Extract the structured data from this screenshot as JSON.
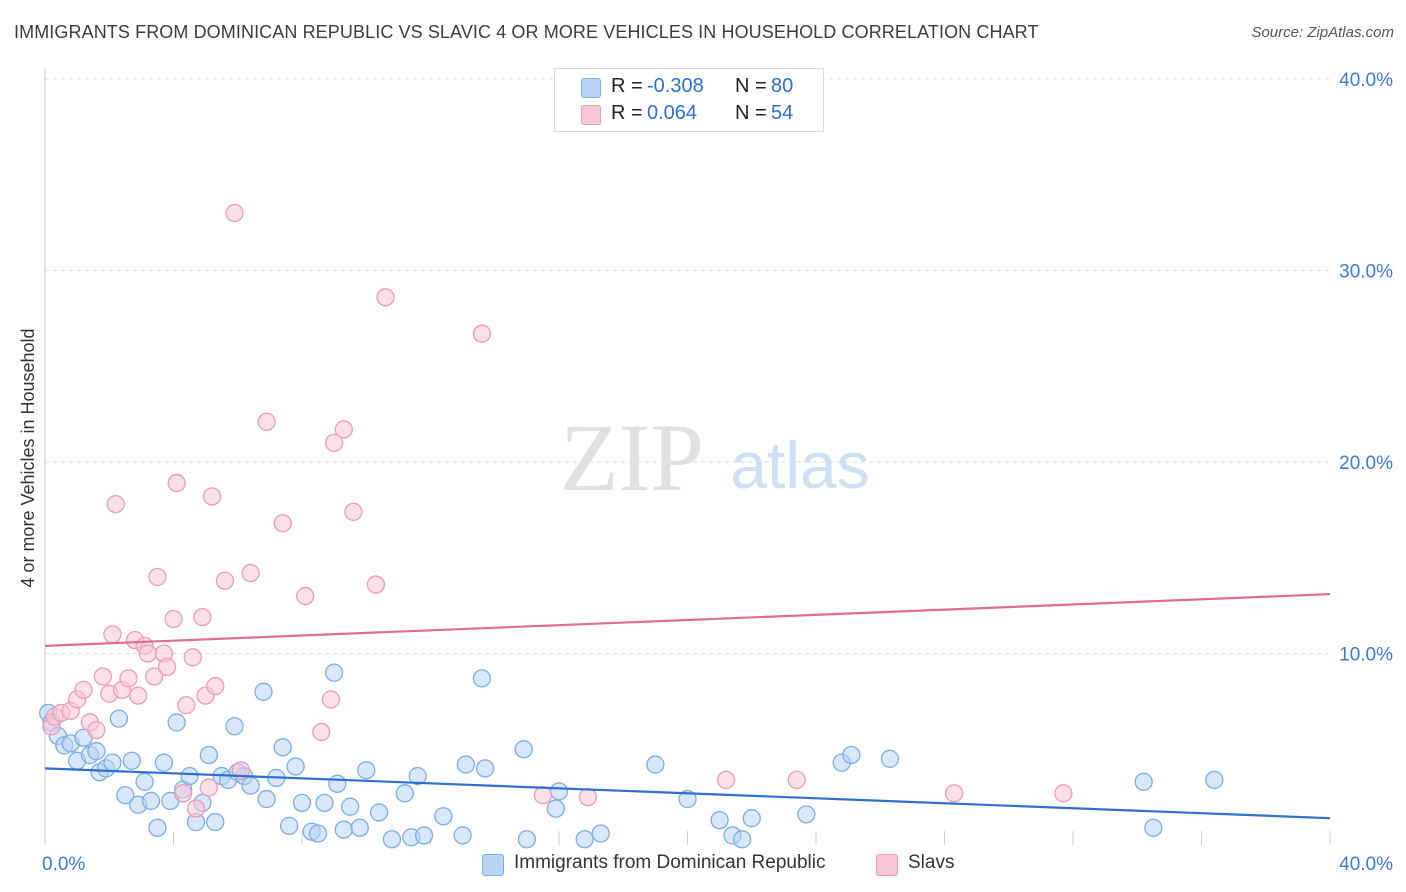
{
  "title": "IMMIGRANTS FROM DOMINICAN REPUBLIC VS SLAVIC 4 OR MORE VEHICLES IN HOUSEHOLD CORRELATION CHART",
  "source": "Source: ZipAtlas.com",
  "legend": {
    "series1": {
      "r_label": "R =",
      "r_value": "-0.308",
      "n_label": "N =",
      "n_value": "80"
    },
    "series2": {
      "r_label": "R =",
      "r_value": "0.064",
      "n_label": "N =",
      "n_value": "54"
    }
  },
  "watermark": {
    "zip": "ZIP",
    "atlas": "atlas"
  },
  "colors": {
    "blue_fill": "#b8d3f4",
    "blue_stroke": "#7aaee6",
    "blue_line": "#2f6fd0",
    "pink_fill": "#f8c6d6",
    "pink_stroke": "#ef9ab6",
    "pink_line": "#e06c94",
    "tick_text": "#3d7ad6",
    "grid": "#dedede"
  },
  "chart_data": {
    "type": "scatter",
    "title": "IMMIGRANTS FROM DOMINICAN REPUBLIC VS SLAVIC 4 OR MORE VEHICLES IN HOUSEHOLD CORRELATION CHART",
    "xlabel": "",
    "ylabel": "4 or more Vehicles in Household",
    "xlim": [
      0,
      40
    ],
    "ylim": [
      0,
      40
    ],
    "x_tick_labels": [
      "0.0%",
      "40.0%"
    ],
    "y_ticks": [
      10,
      20,
      30,
      40
    ],
    "y_tick_labels": [
      "10.0%",
      "20.0%",
      "30.0%",
      "40.0%"
    ],
    "grid": true,
    "legend_position": "bottom-center",
    "series": [
      {
        "name": "Immigrants from Dominican Republic",
        "color": "blue",
        "trend": {
          "x": [
            0,
            40
          ],
          "y": [
            4.0,
            1.4
          ]
        },
        "points": [
          [
            0.1,
            6.9
          ],
          [
            0.2,
            6.4
          ],
          [
            0.4,
            5.7
          ],
          [
            0.6,
            5.2
          ],
          [
            0.8,
            5.3
          ],
          [
            1.0,
            4.4
          ],
          [
            1.2,
            5.6
          ],
          [
            1.4,
            4.7
          ],
          [
            1.6,
            4.9
          ],
          [
            1.7,
            3.8
          ],
          [
            1.9,
            4.0
          ],
          [
            2.1,
            4.3
          ],
          [
            2.3,
            6.6
          ],
          [
            2.5,
            2.6
          ],
          [
            2.7,
            4.4
          ],
          [
            2.9,
            2.1
          ],
          [
            3.1,
            3.3
          ],
          [
            3.3,
            2.3
          ],
          [
            3.5,
            0.9
          ],
          [
            3.7,
            4.3
          ],
          [
            3.9,
            2.3
          ],
          [
            4.1,
            6.4
          ],
          [
            4.3,
            2.9
          ],
          [
            4.5,
            3.6
          ],
          [
            4.7,
            1.2
          ],
          [
            4.9,
            2.2
          ],
          [
            5.1,
            4.7
          ],
          [
            5.3,
            1.2
          ],
          [
            5.5,
            3.6
          ],
          [
            5.7,
            3.4
          ],
          [
            5.9,
            6.2
          ],
          [
            6.0,
            3.8
          ],
          [
            6.2,
            3.6
          ],
          [
            6.4,
            3.1
          ],
          [
            6.8,
            8.0
          ],
          [
            6.9,
            2.4
          ],
          [
            7.2,
            3.5
          ],
          [
            7.4,
            5.1
          ],
          [
            7.6,
            1.0
          ],
          [
            7.8,
            4.1
          ],
          [
            8.0,
            2.2
          ],
          [
            8.3,
            0.7
          ],
          [
            8.5,
            0.6
          ],
          [
            8.7,
            2.2
          ],
          [
            9.0,
            9.0
          ],
          [
            9.1,
            3.2
          ],
          [
            9.3,
            0.8
          ],
          [
            9.5,
            2.0
          ],
          [
            9.8,
            0.9
          ],
          [
            10.0,
            3.9
          ],
          [
            10.4,
            1.7
          ],
          [
            10.8,
            0.3
          ],
          [
            11.2,
            2.7
          ],
          [
            11.4,
            0.4
          ],
          [
            11.6,
            3.6
          ],
          [
            11.8,
            0.5
          ],
          [
            12.4,
            1.5
          ],
          [
            13.0,
            0.5
          ],
          [
            13.1,
            4.2
          ],
          [
            13.6,
            8.7
          ],
          [
            13.7,
            4.0
          ],
          [
            14.9,
            5.0
          ],
          [
            15.0,
            0.3
          ],
          [
            15.9,
            1.9
          ],
          [
            16.0,
            2.8
          ],
          [
            16.8,
            0.3
          ],
          [
            17.3,
            0.6
          ],
          [
            19.0,
            4.2
          ],
          [
            20.0,
            2.4
          ],
          [
            21.0,
            1.3
          ],
          [
            21.4,
            0.5
          ],
          [
            21.7,
            0.3
          ],
          [
            22.0,
            1.4
          ],
          [
            23.7,
            1.6
          ],
          [
            24.8,
            4.3
          ],
          [
            25.1,
            4.7
          ],
          [
            26.3,
            4.5
          ],
          [
            34.2,
            3.3
          ],
          [
            34.5,
            0.9
          ],
          [
            36.4,
            3.4
          ]
        ]
      },
      {
        "name": "Slavs",
        "color": "pink",
        "trend": {
          "x": [
            0,
            40
          ],
          "y": [
            10.4,
            13.1
          ]
        },
        "points": [
          [
            0.2,
            6.2
          ],
          [
            0.3,
            6.7
          ],
          [
            0.5,
            6.9
          ],
          [
            0.8,
            7.0
          ],
          [
            1.0,
            7.6
          ],
          [
            1.2,
            8.1
          ],
          [
            1.4,
            6.4
          ],
          [
            1.6,
            6.0
          ],
          [
            1.8,
            8.8
          ],
          [
            2.0,
            7.9
          ],
          [
            2.1,
            11.0
          ],
          [
            2.2,
            17.8
          ],
          [
            2.4,
            8.1
          ],
          [
            2.6,
            8.7
          ],
          [
            2.8,
            10.7
          ],
          [
            2.9,
            7.8
          ],
          [
            3.1,
            10.4
          ],
          [
            3.2,
            10.0
          ],
          [
            3.4,
            8.8
          ],
          [
            3.5,
            14.0
          ],
          [
            3.7,
            10.0
          ],
          [
            3.8,
            9.3
          ],
          [
            4.0,
            11.8
          ],
          [
            4.1,
            18.9
          ],
          [
            4.3,
            2.7
          ],
          [
            4.4,
            7.3
          ],
          [
            4.6,
            9.8
          ],
          [
            4.7,
            1.9
          ],
          [
            4.9,
            11.9
          ],
          [
            5.0,
            7.8
          ],
          [
            5.1,
            3.0
          ],
          [
            5.2,
            18.2
          ],
          [
            5.3,
            8.3
          ],
          [
            5.6,
            13.8
          ],
          [
            5.9,
            33.0
          ],
          [
            6.1,
            3.9
          ],
          [
            6.4,
            14.2
          ],
          [
            6.9,
            22.1
          ],
          [
            7.4,
            16.8
          ],
          [
            8.1,
            13.0
          ],
          [
            8.6,
            5.9
          ],
          [
            8.9,
            7.6
          ],
          [
            9.0,
            21.0
          ],
          [
            9.3,
            21.7
          ],
          [
            9.6,
            17.4
          ],
          [
            10.3,
            13.6
          ],
          [
            10.6,
            28.6
          ],
          [
            13.6,
            26.7
          ],
          [
            15.5,
            2.6
          ],
          [
            16.9,
            2.5
          ],
          [
            21.2,
            3.4
          ],
          [
            23.4,
            3.4
          ],
          [
            28.3,
            2.7
          ],
          [
            31.7,
            2.7
          ]
        ]
      }
    ]
  },
  "bottom_legend": {
    "series1": "Immigrants from Dominican Republic",
    "series2": "Slavs"
  }
}
